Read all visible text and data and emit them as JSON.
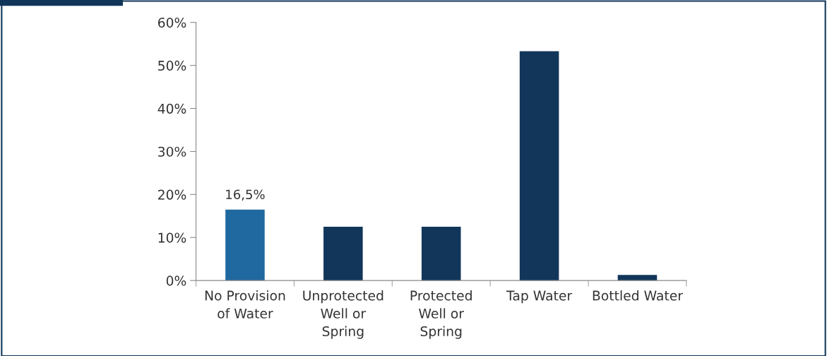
{
  "chart_data": {
    "type": "bar",
    "categories": [
      "No Provision\nof Water",
      "Unprotected\nWell or\nSpring",
      "Protected\nWell or\nSpring",
      "Tap Water",
      "Bottled Water"
    ],
    "values": [
      16.5,
      12.5,
      12.5,
      53.3,
      1.3
    ],
    "colors": [
      "#2068a0",
      "#12365a",
      "#12365a",
      "#12365a",
      "#12365a"
    ],
    "value_labels": [
      "16,5%",
      null,
      null,
      null,
      null
    ],
    "ylim": [
      0,
      60
    ],
    "yticks": [
      {
        "value": 0,
        "label": "0%"
      },
      {
        "value": 10,
        "label": "10%"
      },
      {
        "value": 20,
        "label": "20%"
      },
      {
        "value": 30,
        "label": "30%"
      },
      {
        "value": 40,
        "label": "40%"
      },
      {
        "value": 50,
        "label": "50%"
      },
      {
        "value": 60,
        "label": "60%"
      }
    ],
    "grid": false,
    "legend": false
  }
}
